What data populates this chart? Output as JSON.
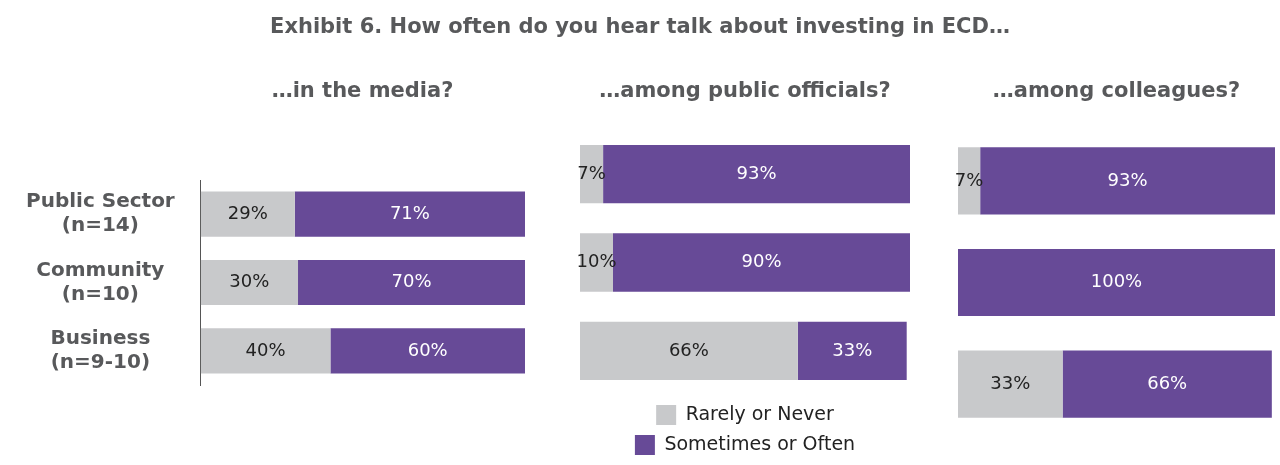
{
  "chart_data": [
    {
      "type": "bar",
      "title": "Exhibit 6.  How often do you hear talk about investing in ECD…",
      "subtitle": "…in the media?",
      "orientation": "horizontal",
      "stacked": true,
      "categories": [
        "Public Sector\n(n=14)",
        "Community\n(n=10)",
        "Business\n(n=9-10)"
      ],
      "xlim": [
        0,
        100
      ],
      "tick_labels": "y",
      "legend": false,
      "series": [
        {
          "color": "#c8c9cb",
          "values": [
            29,
            30,
            40
          ],
          "value_labels": [
            "29%",
            "30%",
            "40%"
          ]
        },
        {
          "color": "#674a97",
          "values": [
            71,
            70,
            60
          ],
          "value_labels": [
            "71%",
            "70%",
            "60%"
          ]
        }
      ]
    },
    {
      "type": "bar",
      "subtitle": "…among public officials?",
      "orientation": "horizontal",
      "stacked": true,
      "categories": [
        null,
        null,
        null
      ],
      "xlim": [
        0,
        100
      ],
      "tick_labels": false,
      "legend": "bottom",
      "series": [
        {
          "name": "Rarely or Never",
          "color": "#c8c9cb",
          "values": [
            7,
            10,
            66
          ],
          "value_labels": [
            "7%",
            "10%",
            "66%"
          ]
        },
        {
          "name": "Sometimes or Often",
          "color": "#674a97",
          "values": [
            93,
            90,
            33
          ],
          "value_labels": [
            "93%",
            "90%",
            "33%"
          ]
        }
      ]
    },
    {
      "type": "bar",
      "subtitle": "…among colleagues?",
      "orientation": "horizontal",
      "stacked": true,
      "categories": [
        null,
        null,
        null
      ],
      "xlim": [
        0,
        100
      ],
      "tick_labels": false,
      "legend": false,
      "series": [
        {
          "color": "#c8c9cb",
          "values": [
            7,
            0,
            33
          ],
          "value_labels": [
            "7%",
            null,
            "33%"
          ]
        },
        {
          "color": "#674a97",
          "values": [
            93,
            100,
            66
          ],
          "value_labels": [
            "93%",
            "100%",
            "66%"
          ]
        }
      ]
    }
  ]
}
